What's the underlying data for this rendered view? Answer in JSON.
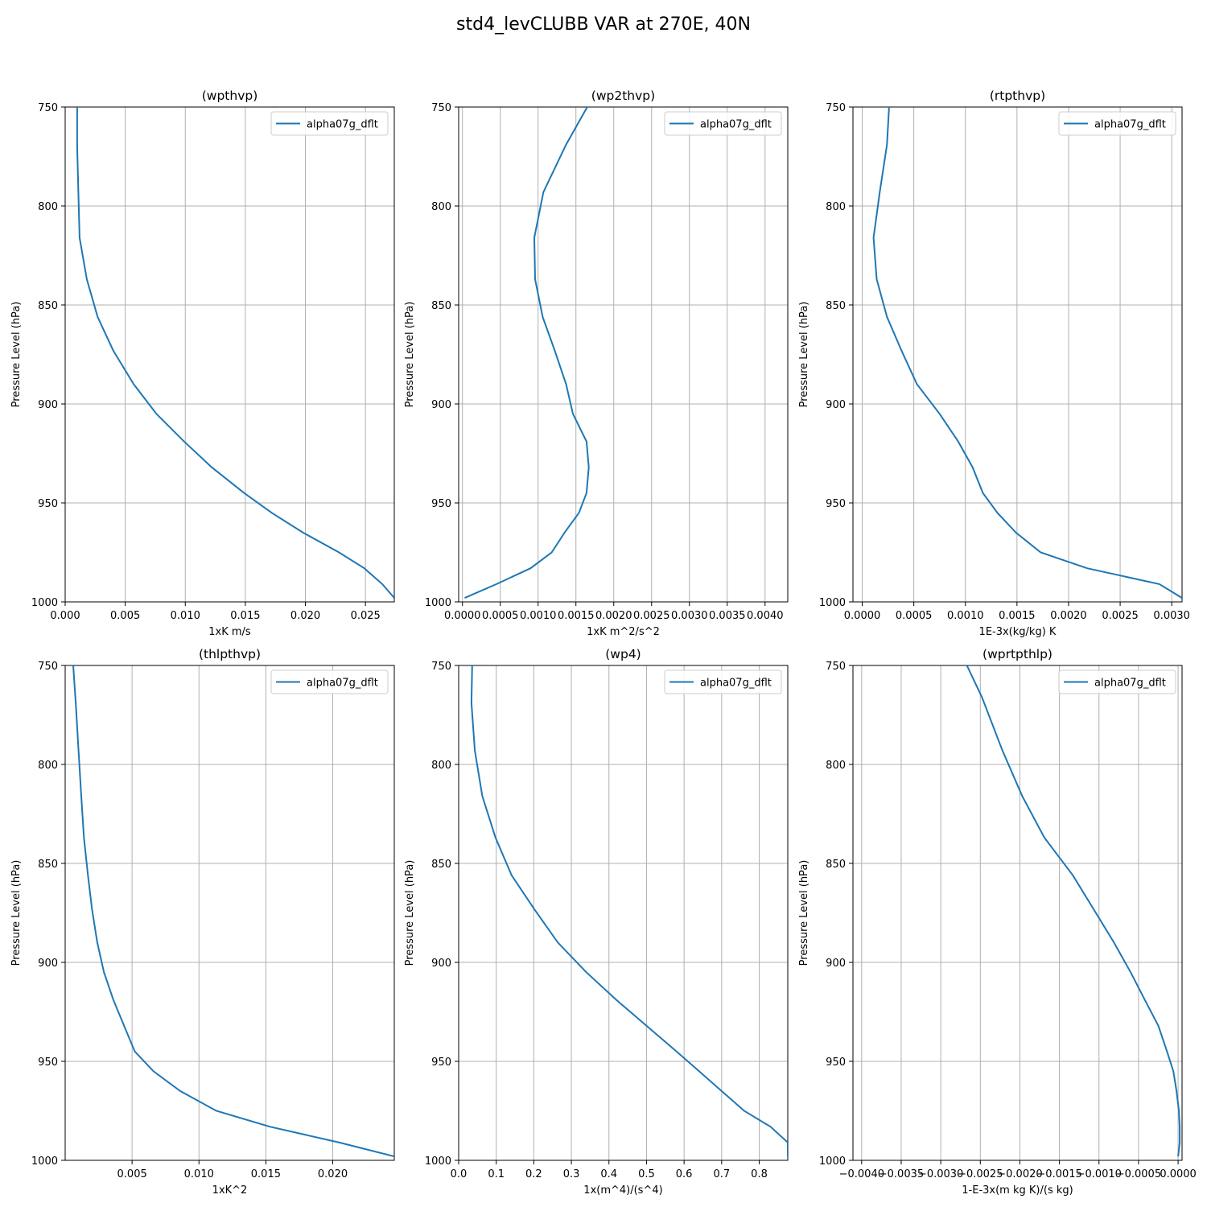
{
  "figure": {
    "suptitle": "std4_levCLUBB VAR at 270E, 40N"
  },
  "colors": {
    "series": "#1f77b4",
    "grid": "#b0b0b0",
    "axes": "#000000"
  },
  "chart_data": [
    {
      "type": "line",
      "title": "(wpthvp)",
      "xlabel": "1xK m/s",
      "ylabel": "Pressure Level (hPa)",
      "xlim": [
        0.0,
        0.0274
      ],
      "ylim": [
        1000,
        750
      ],
      "xticks": [
        0.0,
        0.005,
        0.01,
        0.015,
        0.02,
        0.025
      ],
      "xtick_labels": [
        "0.000",
        "0.005",
        "0.010",
        "0.015",
        "0.020",
        "0.025"
      ],
      "yticks": [
        750,
        800,
        850,
        900,
        950,
        1000
      ],
      "grid": true,
      "legend": "top-right",
      "series": [
        {
          "name": "alpha07g_dflt",
          "x": [
            0.001,
            0.001,
            0.0011,
            0.0012,
            0.0018,
            0.0027,
            0.004,
            0.0057,
            0.0076,
            0.0099,
            0.0122,
            0.0149,
            0.0172,
            0.0198,
            0.0228,
            0.0249,
            0.0264,
            0.0274
          ],
          "y": [
            750,
            770,
            793,
            816,
            837,
            856,
            873,
            890,
            905,
            919,
            932,
            945,
            955,
            965,
            975,
            983,
            991,
            998
          ]
        }
      ]
    },
    {
      "type": "line",
      "title": "(wp2thvp)",
      "xlabel": "1xK m^2/s^2",
      "ylabel": "Pressure Level (hPa)",
      "xlim": [
        -5e-05,
        0.0043
      ],
      "ylim": [
        1000,
        750
      ],
      "xticks": [
        0.0,
        0.0005,
        0.001,
        0.0015,
        0.002,
        0.0025,
        0.003,
        0.0035,
        0.004
      ],
      "xtick_labels": [
        "0.0000",
        "0.0005",
        "0.0010",
        "0.0015",
        "0.0020",
        "0.0025",
        "0.0030",
        "0.0035",
        "0.0040"
      ],
      "yticks": [
        750,
        800,
        850,
        900,
        950,
        1000
      ],
      "grid": true,
      "legend": "top-right",
      "series": [
        {
          "name": "alpha07g_dflt",
          "x": [
            0.00165,
            0.00137,
            0.00107,
            0.00095,
            0.00096,
            0.00106,
            0.00122,
            0.00137,
            0.00146,
            0.00164,
            0.00167,
            0.00164,
            0.00154,
            0.00135,
            0.00118,
            0.0009,
            0.00045,
            3e-05
          ],
          "y": [
            750,
            769,
            793,
            816,
            837,
            856,
            873,
            890,
            905,
            919,
            932,
            945,
            955,
            965,
            975,
            983,
            991,
            998
          ]
        }
      ]
    },
    {
      "type": "line",
      "title": "(rtpthvp)",
      "xlabel": "1E-3x(kg/kg) K",
      "ylabel": "Pressure Level (hPa)",
      "xlim": [
        -9e-05,
        0.0031
      ],
      "ylim": [
        1000,
        750
      ],
      "xticks": [
        0.0,
        0.0005,
        0.001,
        0.0015,
        0.002,
        0.0025,
        0.003
      ],
      "xtick_labels": [
        "0.0000",
        "0.0005",
        "0.0010",
        "0.0015",
        "0.0020",
        "0.0025",
        "0.0030"
      ],
      "yticks": [
        750,
        800,
        850,
        900,
        950,
        1000
      ],
      "grid": true,
      "legend": "top-right",
      "series": [
        {
          "name": "alpha07g_dflt",
          "x": [
            0.00026,
            0.00024,
            0.00017,
            0.00011,
            0.00014,
            0.00024,
            0.00038,
            0.00053,
            0.00075,
            0.00093,
            0.00107,
            0.00117,
            0.00131,
            0.00149,
            0.00173,
            0.00218,
            0.00288,
            0.0031
          ],
          "y": [
            750,
            769,
            793,
            816,
            837,
            856,
            873,
            890,
            905,
            919,
            932,
            945,
            955,
            965,
            975,
            983,
            991,
            998
          ]
        }
      ]
    },
    {
      "type": "line",
      "title": "(thlpthvp)",
      "xlabel": "1xK^2",
      "ylabel": "Pressure Level (hPa)",
      "xlim": [
        0.0,
        0.0246
      ],
      "ylim": [
        1000,
        750
      ],
      "xticks": [
        0.005,
        0.01,
        0.015,
        0.02
      ],
      "xtick_labels": [
        "0.005",
        "0.010",
        "0.015",
        "0.020"
      ],
      "yticks": [
        750,
        800,
        850,
        900,
        950,
        1000
      ],
      "grid": true,
      "legend": "top-right",
      "series": [
        {
          "name": "alpha07g_dflt",
          "x": [
            0.0006,
            0.0008,
            0.001,
            0.0012,
            0.0014,
            0.0017,
            0.002,
            0.0024,
            0.0029,
            0.0036,
            0.0044,
            0.0052,
            0.0066,
            0.0086,
            0.0113,
            0.0153,
            0.0205,
            0.0246
          ],
          "y": [
            750,
            770,
            793,
            816,
            837,
            856,
            873,
            890,
            905,
            919,
            932,
            945,
            955,
            965,
            975,
            983,
            991,
            998
          ]
        }
      ]
    },
    {
      "type": "line",
      "title": "(wp4)",
      "xlabel": "1x(m^4)/(s^4)",
      "ylabel": "Pressure Level (hPa)",
      "xlim": [
        0.0,
        0.876
      ],
      "ylim": [
        1000,
        750
      ],
      "xticks": [
        0.0,
        0.1,
        0.2,
        0.3,
        0.4,
        0.5,
        0.6,
        0.7,
        0.8
      ],
      "xtick_labels": [
        "0.0",
        "0.1",
        "0.2",
        "0.3",
        "0.4",
        "0.5",
        "0.6",
        "0.7",
        "0.8"
      ],
      "yticks": [
        750,
        800,
        850,
        900,
        950,
        1000
      ],
      "grid": true,
      "legend": "top-right",
      "series": [
        {
          "name": "alpha07g_dflt",
          "x": [
            0.036,
            0.034,
            0.043,
            0.063,
            0.098,
            0.141,
            0.201,
            0.264,
            0.34,
            0.42,
            0.5,
            0.58,
            0.64,
            0.7,
            0.76,
            0.83,
            0.876,
            0.876
          ],
          "y": [
            750,
            769,
            793,
            816,
            837,
            856,
            873,
            890,
            905,
            919,
            932,
            945,
            955,
            965,
            975,
            983,
            991,
            998
          ]
        }
      ]
    },
    {
      "type": "line",
      "title": "(wprtpthlp)",
      "xlabel": "1-E-3x(m kg K)/(s kg)",
      "ylabel": "Pressure Level (hPa)",
      "xlim": [
        -0.00411,
        5e-05
      ],
      "ylim": [
        1000,
        750
      ],
      "xticks": [
        -0.004,
        -0.0035,
        -0.003,
        -0.0025,
        -0.002,
        -0.0015,
        -0.001,
        -0.0005,
        0.0
      ],
      "xtick_labels": [
        "−0.0040",
        "−0.0035",
        "−0.0030",
        "−0.0025",
        "−0.0020",
        "−0.0015",
        "−0.0010",
        "−0.0005",
        "0.0000"
      ],
      "yticks": [
        750,
        800,
        850,
        900,
        950,
        1000
      ],
      "grid": true,
      "legend": "top-right",
      "series": [
        {
          "name": "alpha07g_dflt",
          "x": [
            -0.00267,
            -0.00248,
            -0.00222,
            -0.00197,
            -0.00169,
            -0.00133,
            -0.00107,
            -0.00081,
            -0.0006,
            -0.00042,
            -0.00025,
            -0.00014,
            -6e-05,
            -2e-05,
            1e-05,
            2e-05,
            2e-05,
            0.0
          ],
          "y": [
            750,
            766,
            793,
            816,
            837,
            856,
            873,
            890,
            905,
            919,
            932,
            945,
            955,
            965,
            975,
            983,
            991,
            998
          ]
        }
      ]
    }
  ]
}
